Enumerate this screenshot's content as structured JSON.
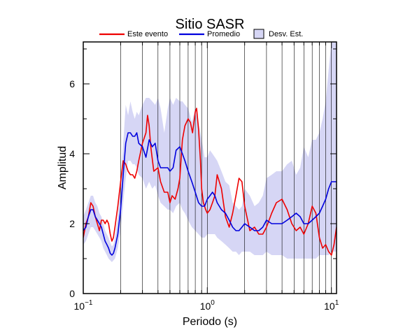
{
  "chart_data": {
    "type": "line",
    "title": "Sitio SASR",
    "xlabel": "Periodo (s)",
    "ylabel": "Amplitud",
    "x_scale": "log",
    "xlim": [
      0.1,
      11
    ],
    "ylim": [
      0,
      7.2
    ],
    "x_major_ticks": [
      0.1,
      1,
      10
    ],
    "x_tick_labels": [
      {
        "base": "10",
        "exp": "−1"
      },
      {
        "base": "10",
        "exp": "0"
      },
      {
        "base": "10",
        "exp": "1"
      }
    ],
    "y_ticks": [
      0,
      2,
      4,
      6
    ],
    "y_tick_labels": [
      "0",
      "2",
      "4",
      "6"
    ],
    "grid": "vertical minor + major (log)",
    "legend_position": "top",
    "legend": [
      {
        "label": "Este evento",
        "kind": "line",
        "color": "#ee0000"
      },
      {
        "label": "Promedio",
        "kind": "line",
        "color": "#0000dd"
      },
      {
        "label": "Desv. Est.",
        "kind": "box",
        "color": "#d6d6f5"
      }
    ],
    "series": [
      {
        "name": "Este evento",
        "color": "#ee0000",
        "x": [
          0.1,
          0.105,
          0.11,
          0.115,
          0.12,
          0.125,
          0.13,
          0.135,
          0.14,
          0.145,
          0.15,
          0.155,
          0.16,
          0.165,
          0.17,
          0.175,
          0.18,
          0.19,
          0.2,
          0.21,
          0.22,
          0.23,
          0.24,
          0.25,
          0.26,
          0.27,
          0.28,
          0.3,
          0.32,
          0.33,
          0.34,
          0.35,
          0.37,
          0.4,
          0.42,
          0.45,
          0.48,
          0.5,
          0.52,
          0.55,
          0.58,
          0.6,
          0.63,
          0.66,
          0.7,
          0.73,
          0.76,
          0.8,
          0.82,
          0.85,
          0.88,
          0.9,
          0.93,
          0.97,
          1.0,
          1.05,
          1.1,
          1.15,
          1.2,
          1.3,
          1.4,
          1.5,
          1.6,
          1.7,
          1.8,
          1.9,
          2.0,
          2.2,
          2.4,
          2.6,
          2.8,
          3.0,
          3.3,
          3.6,
          4.0,
          4.4,
          4.8,
          5.2,
          5.6,
          6.0,
          6.5,
          7.0,
          7.5,
          8.0,
          8.5,
          9.0,
          9.5,
          10.0,
          10.5,
          11.0
        ],
        "y": [
          1.6,
          2.0,
          2.2,
          2.6,
          2.5,
          2.2,
          2.0,
          1.8,
          2.1,
          2.1,
          2.0,
          2.1,
          2.0,
          1.7,
          1.5,
          1.6,
          1.9,
          2.5,
          3.2,
          3.8,
          3.7,
          3.5,
          3.4,
          3.4,
          3.3,
          3.5,
          3.8,
          4.3,
          4.6,
          5.1,
          4.8,
          4.2,
          3.5,
          3.6,
          3.2,
          2.9,
          2.9,
          2.6,
          2.8,
          2.7,
          3.0,
          3.3,
          4.4,
          4.8,
          5.0,
          4.9,
          4.6,
          5.2,
          5.3,
          4.7,
          3.8,
          3.0,
          2.6,
          2.4,
          2.3,
          2.4,
          2.6,
          2.8,
          3.4,
          3.0,
          2.2,
          1.9,
          2.3,
          2.8,
          3.3,
          3.2,
          2.5,
          1.8,
          1.9,
          1.7,
          1.7,
          1.9,
          2.3,
          2.6,
          2.7,
          2.4,
          2.0,
          1.8,
          1.9,
          1.7,
          2.0,
          2.5,
          2.3,
          1.6,
          1.3,
          1.4,
          1.2,
          1.1,
          1.4,
          1.9
        ]
      },
      {
        "name": "Promedio",
        "color": "#0000dd",
        "x": [
          0.1,
          0.105,
          0.11,
          0.115,
          0.12,
          0.125,
          0.13,
          0.135,
          0.14,
          0.145,
          0.15,
          0.155,
          0.16,
          0.165,
          0.17,
          0.175,
          0.18,
          0.19,
          0.2,
          0.21,
          0.22,
          0.23,
          0.24,
          0.25,
          0.26,
          0.27,
          0.28,
          0.3,
          0.32,
          0.34,
          0.36,
          0.38,
          0.4,
          0.42,
          0.45,
          0.48,
          0.5,
          0.53,
          0.56,
          0.6,
          0.63,
          0.66,
          0.7,
          0.75,
          0.8,
          0.85,
          0.9,
          0.95,
          1.0,
          1.05,
          1.1,
          1.15,
          1.2,
          1.3,
          1.4,
          1.5,
          1.6,
          1.7,
          1.8,
          1.9,
          2.0,
          2.2,
          2.4,
          2.6,
          2.8,
          3.0,
          3.3,
          3.6,
          4.0,
          4.4,
          4.8,
          5.2,
          5.6,
          6.0,
          6.5,
          7.0,
          7.5,
          8.0,
          8.5,
          9.0,
          9.5,
          10.0,
          10.5,
          11.0
        ],
        "y": [
          1.8,
          1.9,
          2.2,
          2.4,
          2.4,
          2.2,
          2.1,
          2.0,
          1.9,
          1.7,
          1.5,
          1.4,
          1.3,
          1.15,
          1.1,
          1.15,
          1.3,
          1.7,
          2.4,
          3.4,
          4.3,
          4.6,
          4.6,
          4.5,
          4.5,
          4.6,
          4.3,
          4.2,
          3.9,
          4.4,
          4.2,
          4.3,
          3.8,
          3.6,
          3.6,
          3.6,
          3.5,
          3.6,
          4.1,
          4.2,
          4.0,
          3.8,
          3.5,
          3.2,
          2.9,
          2.6,
          2.5,
          2.5,
          2.7,
          2.8,
          2.9,
          2.8,
          2.6,
          2.4,
          2.3,
          2.1,
          1.9,
          1.8,
          1.8,
          1.9,
          2.0,
          1.9,
          1.8,
          1.8,
          1.9,
          2.1,
          2.0,
          2.0,
          2.0,
          2.1,
          2.2,
          2.3,
          2.2,
          2.0,
          2.0,
          2.1,
          2.2,
          2.3,
          2.5,
          2.7,
          3.0,
          3.2,
          3.2,
          3.2
        ]
      }
    ],
    "band": {
      "name": "Desv. Est.",
      "color": "#d6d6f5",
      "x": [
        0.1,
        0.105,
        0.11,
        0.115,
        0.12,
        0.125,
        0.13,
        0.135,
        0.14,
        0.145,
        0.15,
        0.155,
        0.16,
        0.165,
        0.17,
        0.175,
        0.18,
        0.19,
        0.2,
        0.21,
        0.22,
        0.23,
        0.24,
        0.25,
        0.26,
        0.27,
        0.28,
        0.3,
        0.32,
        0.34,
        0.36,
        0.38,
        0.4,
        0.42,
        0.45,
        0.48,
        0.5,
        0.53,
        0.56,
        0.6,
        0.63,
        0.66,
        0.7,
        0.75,
        0.8,
        0.85,
        0.9,
        0.95,
        1.0,
        1.05,
        1.1,
        1.15,
        1.2,
        1.3,
        1.4,
        1.5,
        1.6,
        1.7,
        1.8,
        1.9,
        2.0,
        2.2,
        2.4,
        2.6,
        2.8,
        3.0,
        3.3,
        3.6,
        4.0,
        4.4,
        4.8,
        5.2,
        5.6,
        6.0,
        6.5,
        7.0,
        7.5,
        8.0,
        8.5,
        9.0,
        9.5,
        10.0,
        10.5,
        11.0
      ],
      "upper": [
        2.2,
        2.4,
        2.6,
        2.8,
        2.8,
        2.6,
        2.5,
        2.3,
        2.2,
        2.0,
        1.8,
        1.7,
        1.6,
        1.45,
        1.35,
        1.4,
        1.6,
        2.2,
        3.2,
        4.3,
        5.4,
        5.1,
        5.5,
        5.2,
        5.0,
        5.2,
        5.1,
        5.4,
        5.6,
        5.6,
        5.5,
        5.4,
        5.6,
        5.3,
        4.6,
        5.3,
        5.6,
        5.4,
        5.6,
        5.5,
        5.5,
        5.4,
        5.3,
        4.9,
        5.3,
        4.9,
        4.4,
        3.9,
        3.9,
        4.1,
        4.0,
        3.9,
        3.8,
        3.5,
        3.2,
        3.1,
        2.6,
        2.5,
        2.4,
        2.5,
        3.0,
        2.8,
        2.5,
        2.6,
        2.8,
        3.3,
        3.4,
        3.5,
        3.5,
        3.7,
        3.8,
        3.4,
        3.6,
        4.2,
        3.9,
        4.4,
        4.4,
        4.6,
        5.0,
        5.5,
        6.4,
        7.2,
        7.2,
        7.2
      ],
      "lower": [
        1.4,
        1.5,
        1.7,
        1.9,
        1.9,
        1.8,
        1.7,
        1.6,
        1.5,
        1.3,
        1.2,
        1.1,
        1.0,
        0.95,
        0.9,
        0.95,
        1.0,
        1.3,
        1.8,
        2.6,
        3.3,
        3.8,
        3.8,
        3.7,
        3.7,
        3.6,
        3.4,
        3.3,
        3.0,
        3.2,
        3.0,
        3.1,
        2.8,
        2.6,
        2.5,
        2.4,
        2.4,
        2.3,
        2.5,
        2.6,
        2.4,
        2.3,
        2.1,
        1.9,
        1.8,
        1.7,
        1.6,
        1.6,
        1.7,
        1.7,
        1.7,
        1.7,
        1.6,
        1.5,
        1.4,
        1.3,
        1.2,
        1.2,
        1.1,
        1.2,
        1.2,
        1.2,
        1.1,
        1.1,
        1.1,
        1.2,
        1.1,
        1.1,
        1.1,
        1.0,
        1.0,
        1.0,
        1.0,
        1.0,
        1.0,
        1.0,
        1.0,
        1.1,
        1.1,
        1.1,
        1.1,
        1.2,
        1.2,
        1.2
      ]
    }
  }
}
